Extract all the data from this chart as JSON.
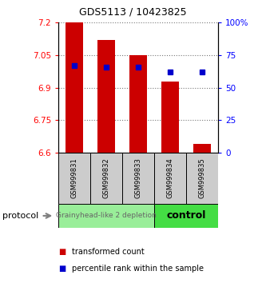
{
  "title": "GDS5113 / 10423825",
  "samples": [
    "GSM999831",
    "GSM999832",
    "GSM999833",
    "GSM999834",
    "GSM999835"
  ],
  "bar_bottom": 6.6,
  "bar_tops": [
    7.2,
    7.12,
    7.05,
    6.93,
    6.64
  ],
  "percentile_ranks": [
    67,
    66,
    66,
    62,
    62
  ],
  "ylim": [
    6.6,
    7.2
  ],
  "y2lim": [
    0,
    100
  ],
  "yticks": [
    6.6,
    6.75,
    6.9,
    7.05,
    7.2
  ],
  "ytick_labels": [
    "6.6",
    "6.75",
    "6.9",
    "7.05",
    "7.2"
  ],
  "y2ticks": [
    0,
    25,
    50,
    75,
    100
  ],
  "y2tick_labels": [
    "0",
    "25",
    "50",
    "75",
    "100%"
  ],
  "bar_color": "#cc0000",
  "dot_color": "#0000cc",
  "bar_width": 0.55,
  "group1_label": "Grainyhead-like 2 depletion",
  "group1_color": "#99ee99",
  "group1_text_color": "#666666",
  "group1_fontsize": 6.5,
  "group2_label": "control",
  "group2_color": "#44dd44",
  "group2_fontsize": 9,
  "protocol_label": "protocol",
  "legend_items": [
    {
      "color": "#cc0000",
      "label": "transformed count"
    },
    {
      "color": "#0000cc",
      "label": "percentile rank within the sample"
    }
  ],
  "background_color": "#ffffff",
  "grid_color": "#777777",
  "sample_box_color": "#cccccc",
  "title_fontsize": 9,
  "tick_fontsize": 7.5,
  "sample_fontsize": 6
}
